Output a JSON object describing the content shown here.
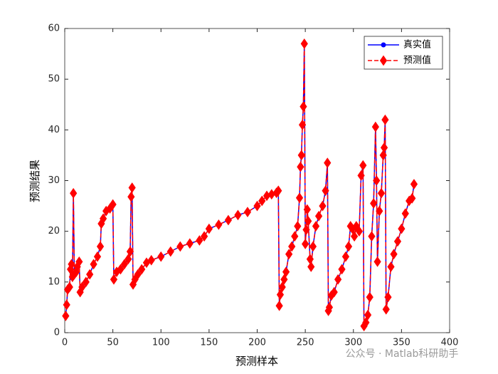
{
  "chart_data": {
    "type": "line",
    "xlabel": "预测样本",
    "ylabel": "预测结果",
    "xlim": [
      0,
      400
    ],
    "xticks": [
      0,
      50,
      100,
      150,
      200,
      250,
      300,
      350,
      400
    ],
    "ylim": [
      0,
      60
    ],
    "yticks": [
      0,
      10,
      20,
      30,
      40,
      50,
      60
    ],
    "legend": "top-right",
    "watermark": "公众号 · Matlab科研助手",
    "x": [
      1,
      2,
      3,
      5,
      6,
      7,
      8,
      9,
      10,
      12,
      13,
      15,
      16,
      18,
      22,
      26,
      30,
      34,
      37,
      38,
      40,
      43,
      47,
      50,
      51,
      54,
      58,
      62,
      66,
      68,
      69,
      70,
      71,
      73,
      76,
      80,
      85,
      90,
      100,
      110,
      120,
      130,
      140,
      145,
      150,
      160,
      170,
      180,
      190,
      200,
      205,
      210,
      215,
      220,
      222,
      223,
      224,
      226,
      228,
      230,
      233,
      236,
      239,
      242,
      244,
      245,
      246,
      247,
      248,
      249,
      250,
      251,
      252,
      253,
      255,
      256,
      258,
      261,
      264,
      268,
      271,
      273,
      274,
      275,
      277,
      280,
      284,
      288,
      292,
      295,
      297,
      299,
      301,
      303,
      306,
      308,
      310,
      311,
      313,
      315,
      317,
      319,
      321,
      323,
      324,
      325,
      327,
      329,
      331,
      332,
      333,
      334,
      336,
      339,
      342,
      346,
      350,
      354,
      358,
      361,
      363
    ],
    "series": [
      {
        "name": "真实值",
        "color": "#0000ff",
        "line": "solid",
        "marker": "circle",
        "values": [
          3.3,
          5.5,
          8.5,
          9,
          12.5,
          13.5,
          11,
          27.5,
          11.5,
          12,
          13,
          14,
          8,
          9,
          10,
          11.5,
          13.5,
          15,
          17,
          21.5,
          22.5,
          24,
          24.5,
          25.3,
          10.5,
          12,
          12.5,
          13.5,
          14.5,
          16,
          26.8,
          28.6,
          9.5,
          10.5,
          11.5,
          12.5,
          13.8,
          14.3,
          15,
          16,
          17,
          17.6,
          18.2,
          19,
          20.5,
          21.3,
          22.2,
          23.2,
          23.8,
          25,
          26,
          27,
          27.3,
          27.6,
          28,
          5.3,
          7.5,
          9,
          10.5,
          12,
          15.5,
          17,
          19,
          21,
          26.6,
          32.7,
          35,
          41,
          44.6,
          57,
          17.5,
          20.3,
          24.3,
          22,
          14.5,
          13,
          17,
          21,
          23,
          25,
          28,
          33.5,
          4.3,
          5,
          7.3,
          8,
          10.5,
          12.5,
          15,
          17,
          21,
          20.5,
          19,
          21,
          20,
          31,
          33,
          1.3,
          2,
          3.5,
          7,
          19,
          25.5,
          40.6,
          30,
          14,
          24,
          27.5,
          35,
          36.5,
          42,
          4.6,
          7,
          13,
          15.5,
          18,
          20.5,
          23.5,
          26,
          26.5,
          29.3
        ]
      },
      {
        "name": "预测值",
        "color": "#ff0000",
        "line": "dashed",
        "marker": "diamond",
        "values": [
          3.3,
          5.5,
          8.5,
          9,
          12.5,
          13.5,
          11,
          27.5,
          11.5,
          12,
          13,
          14,
          8,
          9,
          10,
          11.5,
          13.5,
          15,
          17,
          21.5,
          22.5,
          24,
          24.5,
          25.3,
          10.5,
          12,
          12.5,
          13.5,
          14.5,
          16,
          26.8,
          28.6,
          9.5,
          10.5,
          11.5,
          12.5,
          13.8,
          14.3,
          15,
          16,
          17,
          17.6,
          18.2,
          19,
          20.5,
          21.3,
          22.2,
          23.2,
          23.8,
          25,
          26,
          27,
          27.3,
          27.6,
          28,
          5.3,
          7.5,
          9,
          10.5,
          12,
          15.5,
          17,
          19,
          21,
          26.6,
          32.7,
          35,
          41,
          44.6,
          57,
          17.5,
          20.3,
          24.3,
          22,
          14.5,
          13,
          17,
          21,
          23,
          25,
          28,
          33.5,
          4.3,
          5,
          7.3,
          8,
          10.5,
          12.5,
          15,
          17,
          21,
          20.5,
          19,
          21,
          20,
          31,
          33,
          1.3,
          2,
          3.5,
          7,
          19,
          25.5,
          40.6,
          30,
          14,
          24,
          27.5,
          35,
          36.5,
          42,
          4.6,
          7,
          13,
          15.5,
          18,
          20.5,
          23.5,
          26,
          26.5,
          29.3
        ]
      }
    ]
  }
}
